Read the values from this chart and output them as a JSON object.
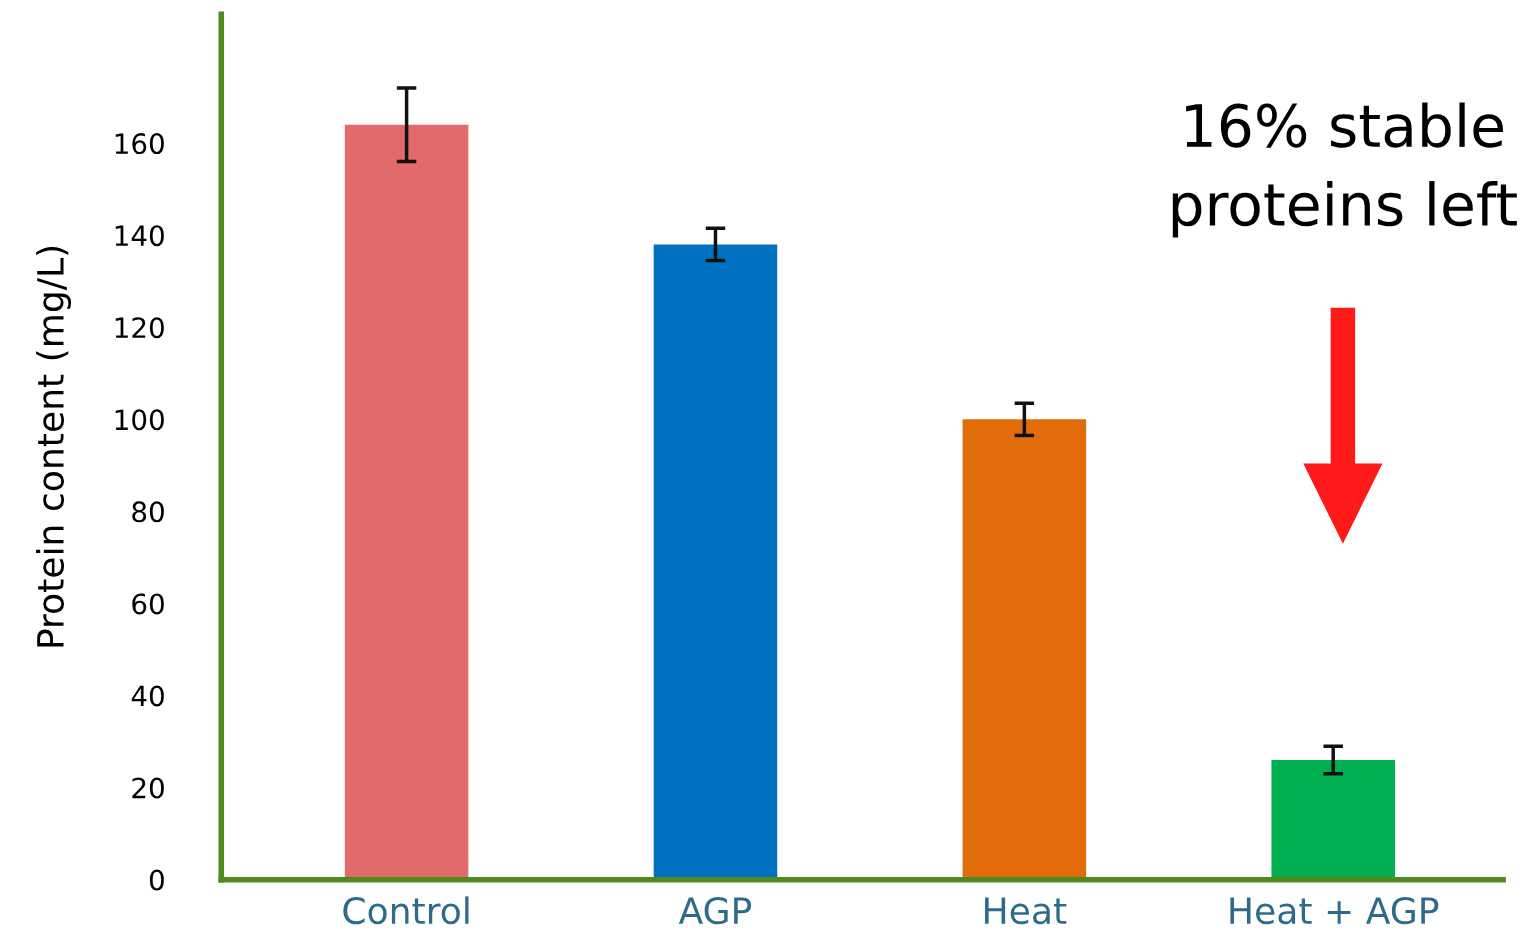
{
  "chart_data": {
    "type": "bar",
    "ylabel": "Protein content (mg/L)",
    "categories": [
      "Control",
      "AGP",
      "Heat",
      "Heat + AGP"
    ],
    "values": [
      164,
      138,
      100,
      26
    ],
    "errors": [
      8,
      3.5,
      3.5,
      3
    ],
    "colors": [
      "#e36a6a",
      "#0070c0",
      "#e36c0a",
      "#00b050"
    ],
    "ylim": [
      0,
      188
    ],
    "yticks": [
      0,
      20,
      40,
      60,
      80,
      100,
      120,
      140,
      160
    ],
    "grid": false,
    "annotations": [
      "16% stable\nproteins left"
    ]
  }
}
